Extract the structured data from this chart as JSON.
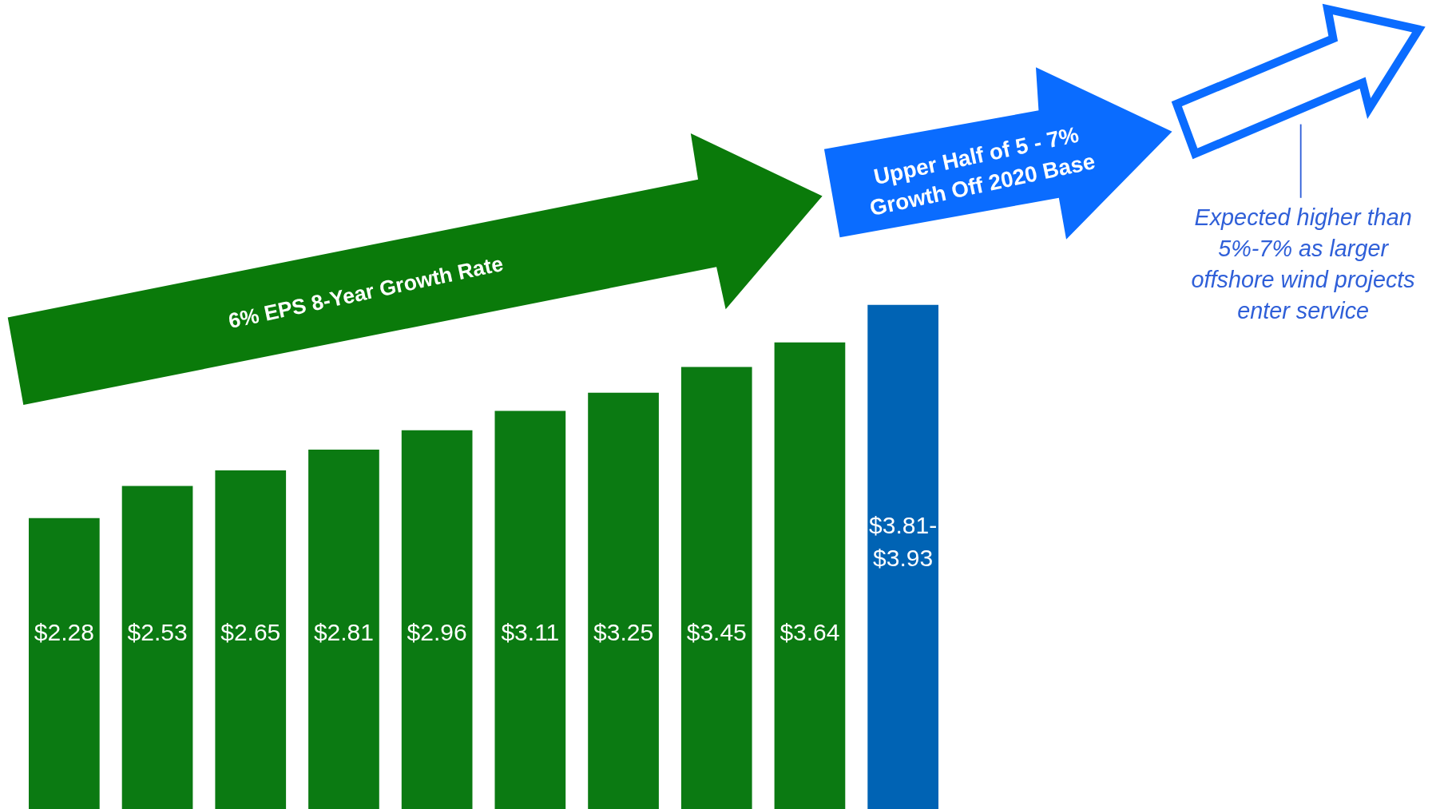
{
  "chart_data": {
    "type": "bar",
    "categories": [
      null,
      null,
      null,
      null,
      null,
      null,
      null,
      null,
      null,
      null
    ],
    "values": [
      2.28,
      2.53,
      2.65,
      2.81,
      2.96,
      3.11,
      3.25,
      3.45,
      3.64,
      3.93
    ],
    "colors": [
      "#0b7a12",
      "#0b7a12",
      "#0b7a12",
      "#0b7a12",
      "#0b7a12",
      "#0b7a12",
      "#0b7a12",
      "#0b7a12",
      "#0b7a12",
      "#0063b4"
    ],
    "value_labels": [
      "$2.28",
      "$2.53",
      "$2.65",
      "$2.81",
      "$2.96",
      "$3.11",
      "$3.25",
      "$3.45",
      "$3.64",
      "$3.81-$3.93"
    ],
    "annotations": [
      "6% EPS 8-Year Growth Rate",
      "Upper Half of 5 - 7% Growth Off 2020 Base",
      "Expected higher than 5%-7% as larger offshore wind projects enter service"
    ],
    "legend": false
  }
}
